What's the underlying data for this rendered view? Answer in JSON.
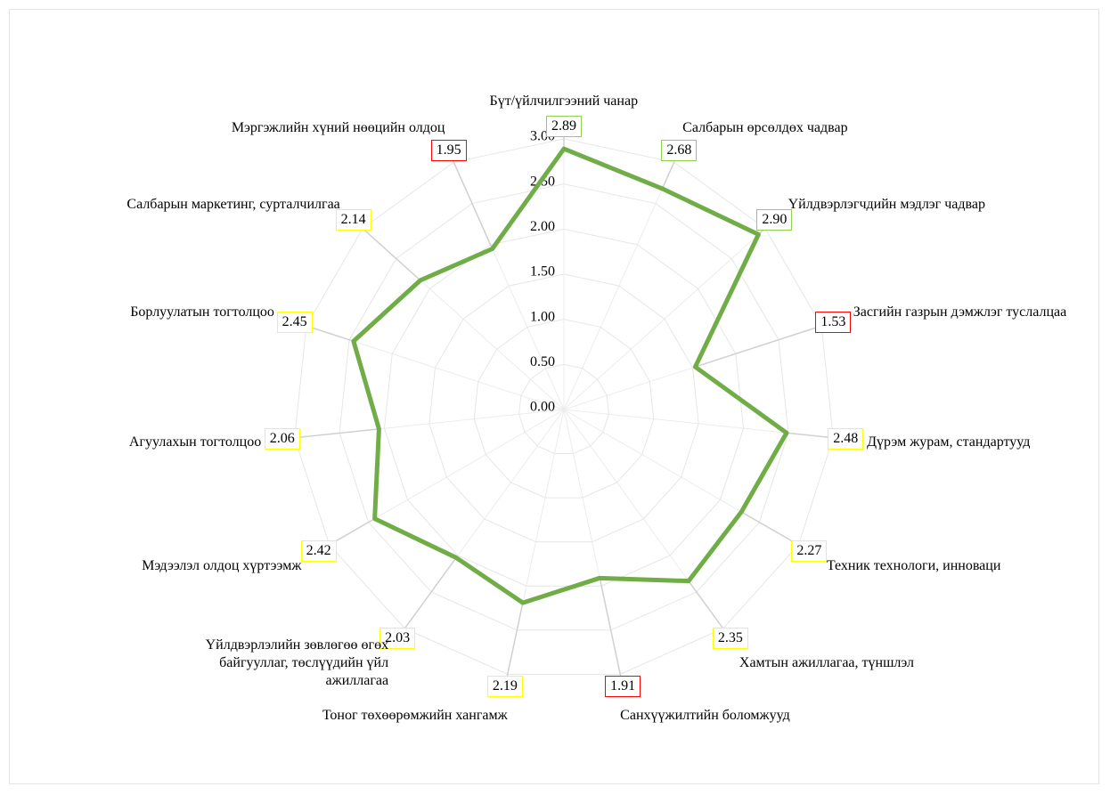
{
  "chart_data": {
    "type": "radar",
    "categories": [
      "Бүт/үйлчилгээний чанар",
      "Салбарын өрсөлдөх чадвар",
      "Үйлдвэрлэгчдийн мэдлэг чадвар",
      "Засгийн газрын дэмжлэг туслалцаа",
      "Дүрэм журам, стандартууд",
      "Техник технологи, инноваци",
      "Хамтын ажиллагаа, түншлэл",
      "Санхүүжилтийн боломжууд",
      "Тоног төхөөрөмжийн хангамж",
      "Үйлдвэрлэлийн зөвлөгөө өгөх байгууллаг, төслүүдийн үйл ажиллагаа",
      "Мэдээлэл олдоц хүртээмж",
      "Агуулахын тогтолцоо",
      "Борлуулатын тогтолцоо",
      "Салбарын маркетинг, сурталчилгаа",
      "Мэргэжлийн хүний нөөцийн олдоц"
    ],
    "values": [
      2.89,
      2.68,
      2.9,
      1.53,
      2.48,
      2.27,
      2.35,
      1.91,
      2.19,
      2.03,
      2.42,
      2.06,
      2.45,
      2.14,
      1.95
    ],
    "value_labels": [
      "2.89",
      "2.68",
      "2.90",
      "1.53",
      "2.48",
      "2.27",
      "2.35",
      "1.91",
      "2.19",
      "2.03",
      "2.42",
      "2.06",
      "2.45",
      "2.14",
      "1.95"
    ],
    "label_border_colors": [
      "#92d050",
      "#92d050",
      "#92d050",
      "#ff0000",
      "#ffff00",
      "#ffff00",
      "#ffff00",
      "#ff0000",
      "#ffff00",
      "#ffff00",
      "#ffff00",
      "#ffff00",
      "#ffff00",
      "#ffff00",
      "#ff0000"
    ],
    "color": "#70ad47",
    "rlim": [
      0,
      3
    ],
    "rticks": [
      {
        "value": 0,
        "label": "0.00"
      },
      {
        "value": 0.5,
        "label": "0.50"
      },
      {
        "value": 1,
        "label": "1.00"
      },
      {
        "value": 1.5,
        "label": "1.50"
      },
      {
        "value": 2,
        "label": "2.00"
      },
      {
        "value": 2.5,
        "label": "2.50"
      },
      {
        "value": 3,
        "label": "3.00"
      }
    ],
    "grid": true
  }
}
